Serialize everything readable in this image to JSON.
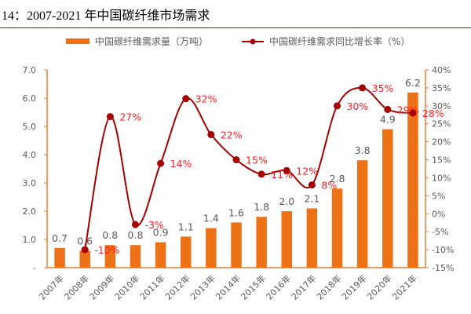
{
  "chart_data": {
    "type": "bar+line",
    "title": "14：2007-2021 年中国碳纤维市场需求",
    "categories": [
      "2007年",
      "2008年",
      "2009年",
      "2010年",
      "2011年",
      "2012年",
      "2013年",
      "2014年",
      "2015年",
      "2016年",
      "2017年",
      "2018年",
      "2019年",
      "2020年",
      "2021年"
    ],
    "series": [
      {
        "name": "中国碳纤维需求量（万吨）",
        "type": "bar",
        "axis": "left",
        "color": "#ED7117",
        "values": [
          0.7,
          0.6,
          0.8,
          0.8,
          0.9,
          1.1,
          1.4,
          1.6,
          1.8,
          2.0,
          2.1,
          2.8,
          3.8,
          4.9,
          6.2
        ],
        "labels": [
          "0.7",
          "0.6",
          "0.8",
          "0.8",
          "0.9",
          "1.1",
          "1.4",
          "1.6",
          "1.8",
          "2.0",
          "2.1",
          "2.8",
          "3.8",
          "4.9",
          "6.2"
        ]
      },
      {
        "name": "中国碳纤维需求同比增长率（%）",
        "type": "line",
        "axis": "right",
        "color": "#A50000",
        "label_color": "#FF2020",
        "values": [
          null,
          -10,
          27,
          -3,
          14,
          32,
          22,
          15,
          11,
          12,
          8,
          30,
          35,
          29,
          28
        ],
        "labels": [
          "",
          "-10%",
          "27%",
          "-3%",
          "14%",
          "32%",
          "22%",
          "15%",
          "11%",
          "12%",
          "8%",
          "30%",
          "35%",
          "29%",
          "28%"
        ]
      }
    ],
    "left_axis": {
      "ylim": [
        0,
        7
      ],
      "ticks": [
        "-",
        "1.0",
        "2.0",
        "3.0",
        "4.0",
        "5.0",
        "6.0",
        "7.0"
      ]
    },
    "right_axis": {
      "ylim": [
        -15,
        40
      ],
      "ticks": [
        "-15%",
        "-10%",
        "-5%",
        "0%",
        "5%",
        "10%",
        "15%",
        "20%",
        "25%",
        "30%",
        "35%",
        "40%"
      ]
    },
    "legend_position": "top",
    "grid": false
  }
}
